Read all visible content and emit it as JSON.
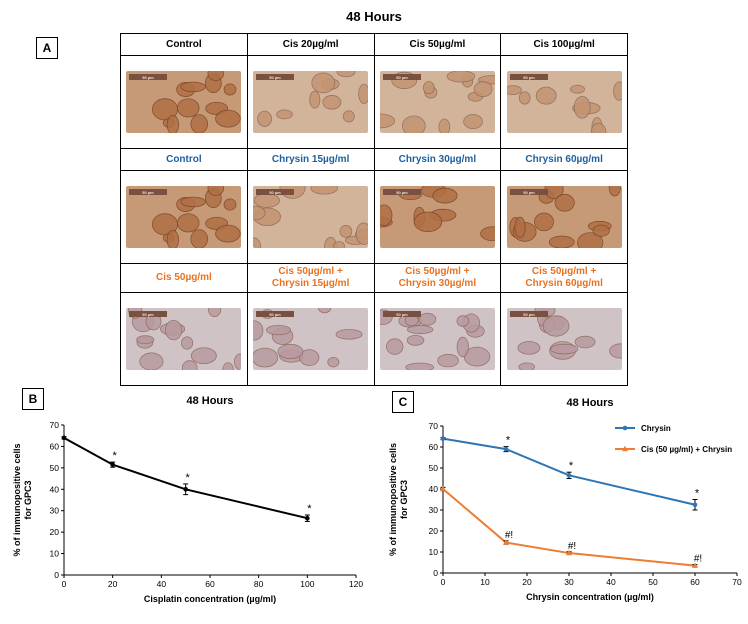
{
  "figure_title": "48 Hours",
  "panel_a": {
    "label": "A",
    "row1_headers": [
      "Control",
      "Cis 20µg/ml",
      "Cis 50µg/ml",
      "Cis 100µg/ml"
    ],
    "row2_headers": [
      "Control",
      "Chrysin 15µg/ml",
      "Chrysin 30µg/ml",
      "Chrysin 60µg/ml"
    ],
    "row3_headers": [
      [
        "Cis 50µg/ml",
        ""
      ],
      [
        "Cis 50µg/ml +",
        "Chrysin 15µg/ml"
      ],
      [
        "Cis 50µg/ml +",
        "Chrysin 30µg/ml"
      ],
      [
        "Cis 50µg/ml +",
        "Chrysin 60µg/ml"
      ]
    ],
    "colors": {
      "row1": "#000000",
      "row2": "#1f5f9f",
      "row3": "#e8721f"
    },
    "image_scale_bar_text": "50 µm"
  },
  "chart_data": [
    {
      "panel": "B",
      "type": "line",
      "title": "48 Hours",
      "xlabel": "Cisplatin concentration (µg/ml)",
      "ylabel": "% of immunopositive cells for GPC3",
      "xlim": [
        0,
        120
      ],
      "ylim": [
        0,
        70
      ],
      "xticks": [
        0,
        20,
        40,
        60,
        80,
        100,
        120
      ],
      "yticks": [
        0,
        10,
        20,
        30,
        40,
        50,
        60,
        70
      ],
      "grid": false,
      "series": [
        {
          "color": "#000000",
          "x": [
            0,
            20,
            50,
            100
          ],
          "y": [
            64,
            51.5,
            40,
            26.5
          ],
          "err": [
            0.5,
            1.2,
            2.5,
            1.5
          ],
          "annotations": [
            "",
            "*",
            "*",
            "*"
          ]
        }
      ]
    },
    {
      "panel": "C",
      "type": "line",
      "title": "48 Hours",
      "xlabel": "Chrysin concentration (µg/ml)",
      "ylabel": "% of immunopositive cells for GPC3",
      "xlim": [
        0,
        70
      ],
      "ylim": [
        0,
        70
      ],
      "xticks": [
        0,
        10,
        20,
        30,
        40,
        50,
        60,
        70
      ],
      "yticks": [
        0,
        10,
        20,
        30,
        40,
        50,
        60,
        70
      ],
      "grid": false,
      "legend_position": "top-right",
      "series": [
        {
          "name": "Chrysin",
          "color": "#2e75b6",
          "marker": "circle",
          "x": [
            0,
            15,
            30,
            60
          ],
          "y": [
            64,
            59,
            46.5,
            32.5
          ],
          "err": [
            0.5,
            1.2,
            1.5,
            2.5
          ],
          "annotations": [
            "",
            "*",
            "*",
            "*"
          ]
        },
        {
          "name": "Cis (50 µg/ml) + Chrysin",
          "color": "#ed7d31",
          "marker": "triangle",
          "x": [
            0,
            15,
            30,
            60
          ],
          "y": [
            40,
            14.5,
            9.5,
            3.5
          ],
          "err": [
            0.8,
            0.8,
            0.6,
            0.5
          ],
          "annotations": [
            "",
            "#!",
            "#!",
            "#!"
          ]
        }
      ]
    }
  ]
}
